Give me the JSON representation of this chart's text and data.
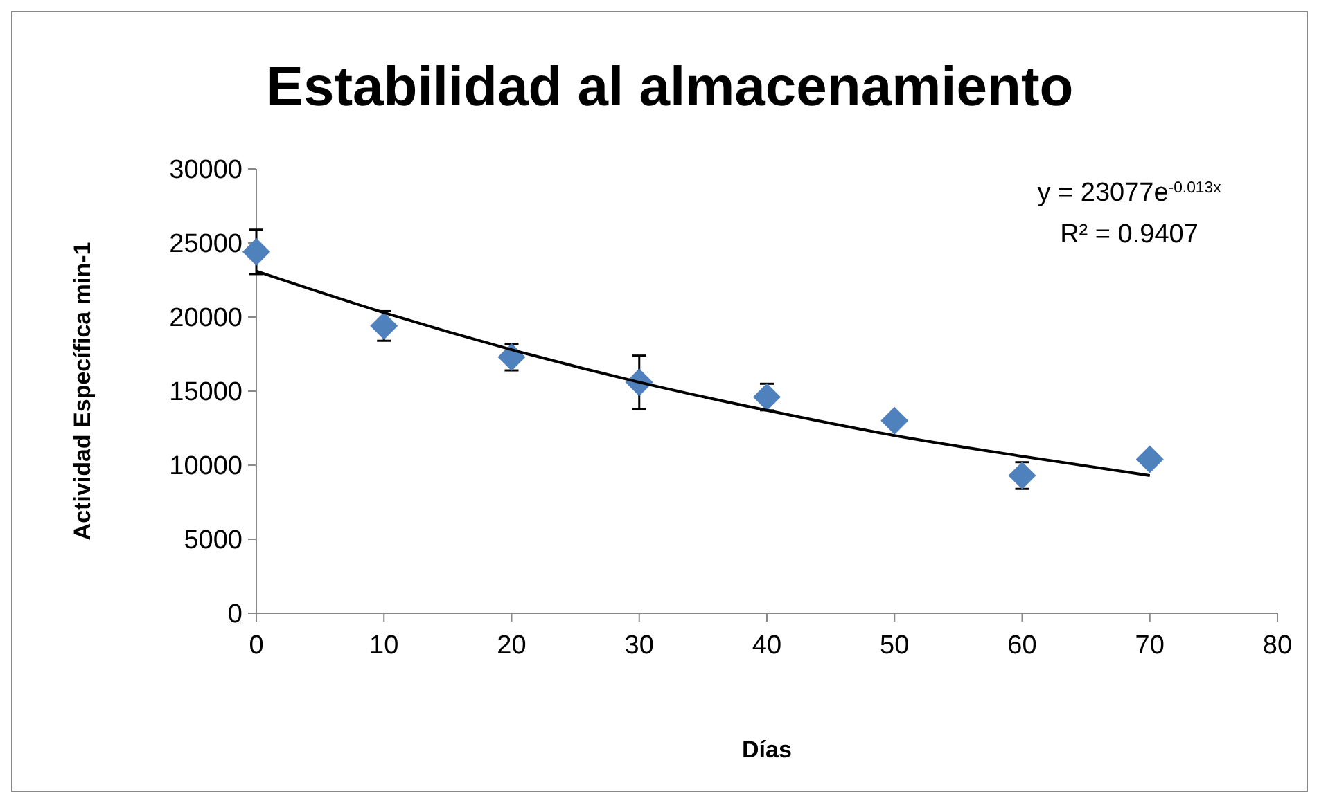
{
  "chart_data": {
    "type": "scatter",
    "title": "Estabilidad al almacenamiento",
    "xlabel": "Días",
    "ylabel": "Actividad  Específica  min-1",
    "x": [
      0,
      10,
      20,
      30,
      40,
      50,
      60,
      70
    ],
    "series": [
      {
        "type": "scatter",
        "color": "#4f81bd",
        "marker": "diamond",
        "values": [
          24400,
          19400,
          17300,
          15600,
          14600,
          13000,
          9300,
          10400
        ],
        "errors": [
          1500,
          1000,
          900,
          1800,
          900,
          null,
          900,
          null
        ]
      },
      {
        "type": "line",
        "color": "#000000",
        "marker": "none",
        "x": [
          0,
          10,
          20,
          30,
          40,
          50,
          60,
          70
        ],
        "values": [
          23100,
          20300,
          17800,
          15600,
          13700,
          12000,
          10600,
          9300
        ]
      }
    ],
    "annotations": [
      "y = 23077e$^{-0.013x}$",
      "R² = 0.9407"
    ],
    "xlim": [
      0,
      80
    ],
    "xticks": [
      0,
      10,
      20,
      30,
      40,
      50,
      60,
      70,
      80
    ],
    "ylim": [
      0,
      30000
    ],
    "yticks": [
      0,
      5000,
      10000,
      15000,
      20000,
      25000,
      30000
    ],
    "grid": false
  }
}
